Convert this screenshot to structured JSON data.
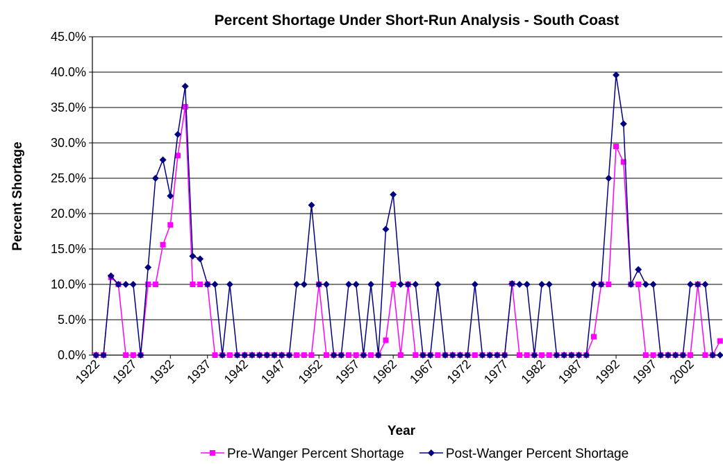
{
  "chart_data": {
    "type": "line",
    "title": "Percent Shortage Under Short-Run Analysis - South Coast",
    "x_label": "Year",
    "y_label": "Percent Shortage",
    "x": [
      1922,
      1923,
      1924,
      1925,
      1926,
      1927,
      1928,
      1929,
      1930,
      1931,
      1932,
      1933,
      1934,
      1935,
      1936,
      1937,
      1938,
      1939,
      1940,
      1941,
      1942,
      1943,
      1944,
      1945,
      1946,
      1947,
      1948,
      1949,
      1950,
      1951,
      1952,
      1953,
      1954,
      1955,
      1956,
      1957,
      1958,
      1959,
      1960,
      1961,
      1962,
      1963,
      1964,
      1965,
      1966,
      1967,
      1968,
      1969,
      1970,
      1971,
      1972,
      1973,
      1974,
      1975,
      1976,
      1977,
      1978,
      1979,
      1980,
      1981,
      1982,
      1983,
      1984,
      1985,
      1986,
      1987,
      1988,
      1989,
      1990,
      1991,
      1992,
      1993,
      1994,
      1995,
      1996,
      1997,
      1998,
      1999,
      2000,
      2001,
      2002,
      2003,
      2004,
      2005,
      2006
    ],
    "series": [
      {
        "name": "Pre-Wanger Percent Shortage",
        "color": "#ff00ff",
        "marker": "square",
        "values": [
          0,
          0,
          11,
          10,
          0,
          0,
          0,
          10,
          10,
          15.6,
          18.4,
          28.2,
          35.1,
          10,
          10,
          10,
          0,
          0,
          0,
          0,
          0,
          0,
          0,
          0,
          0,
          0,
          0,
          0,
          0,
          0,
          10,
          0,
          0,
          0,
          0,
          0,
          0,
          0,
          0,
          2.1,
          10,
          0,
          10,
          0,
          0,
          0,
          0,
          0,
          0,
          0,
          0,
          0,
          0,
          0,
          0,
          0,
          10.1,
          0,
          0,
          0,
          0,
          0,
          0,
          0,
          0,
          0,
          0,
          2.6,
          10,
          10,
          29.5,
          27.3,
          10,
          10,
          0,
          0,
          0,
          0,
          0,
          0,
          0,
          10,
          0,
          0,
          2
        ]
      },
      {
        "name": "Post-Wanger Percent Shortage",
        "color": "#000080",
        "marker": "diamond",
        "values": [
          0,
          0,
          11.2,
          10,
          10,
          10,
          0,
          12.4,
          25,
          27.6,
          22.5,
          31.2,
          38,
          14,
          13.6,
          10,
          10,
          0,
          10,
          0,
          0,
          0,
          0,
          0,
          0,
          0,
          0,
          10,
          10,
          21.2,
          10,
          10,
          0,
          0,
          10,
          10,
          0,
          10,
          0,
          17.8,
          22.7,
          10,
          10,
          10,
          0,
          0,
          10,
          0,
          0,
          0,
          0,
          10,
          0,
          0,
          0,
          0,
          10.1,
          10,
          10,
          0,
          10,
          10,
          0,
          0,
          0,
          0,
          0,
          10,
          10,
          25,
          39.6,
          32.7,
          10,
          12.1,
          10,
          10,
          0,
          0,
          0,
          0,
          10,
          10,
          10,
          0,
          0
        ]
      }
    ],
    "xlim": [
      1921.5,
      2006.3
    ],
    "xticks": [
      1922,
      1927,
      1932,
      1937,
      1942,
      1947,
      1952,
      1957,
      1962,
      1967,
      1972,
      1977,
      1982,
      1987,
      1992,
      1997,
      2002
    ],
    "ylim": [
      0,
      45
    ],
    "yticks": [
      {
        "value": 0,
        "label": "0.0%"
      },
      {
        "value": 5,
        "label": "5.0%"
      },
      {
        "value": 10,
        "label": "10.0%"
      },
      {
        "value": 15,
        "label": "15.0%"
      },
      {
        "value": 20,
        "label": "20.0%"
      },
      {
        "value": 25,
        "label": "25.0%"
      },
      {
        "value": 30,
        "label": "30.0%"
      },
      {
        "value": 35,
        "label": "35.0%"
      },
      {
        "value": 40,
        "label": "40.0%"
      },
      {
        "value": 45,
        "label": "45.0%"
      }
    ],
    "grid": true,
    "legend": "bottom"
  }
}
